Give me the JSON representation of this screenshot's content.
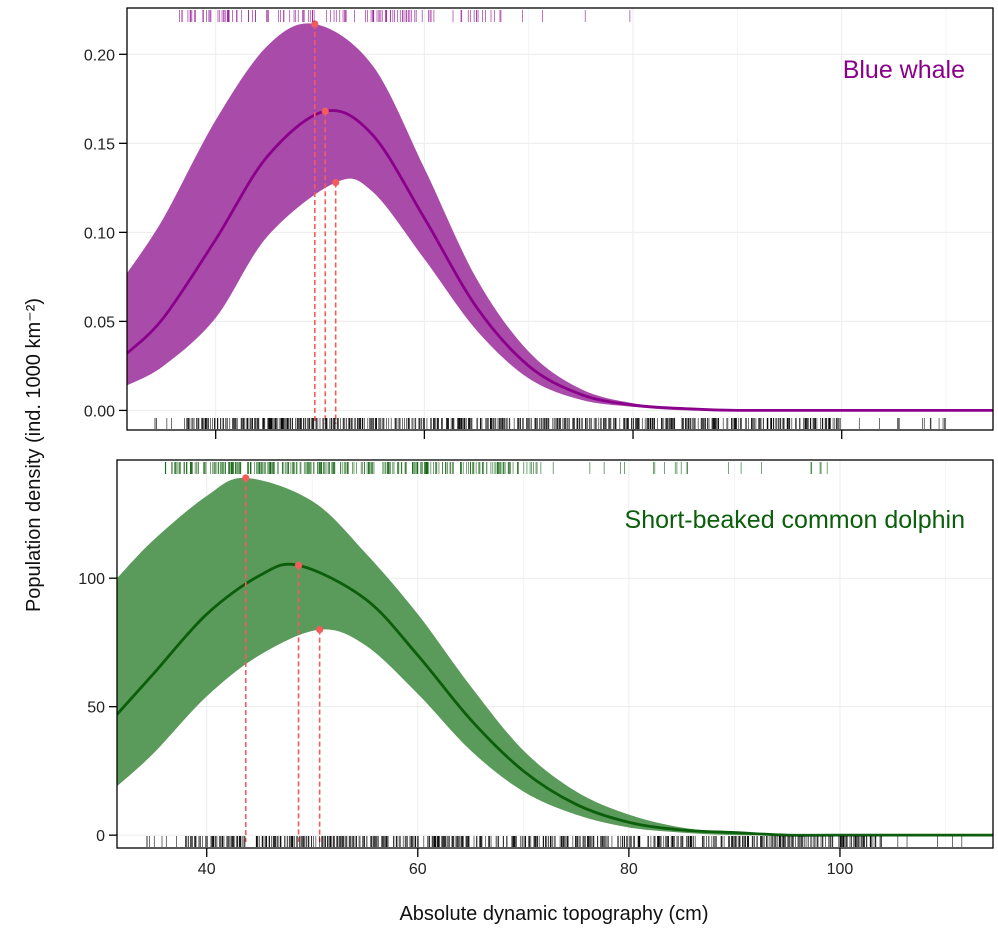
{
  "chart_data": [
    {
      "type": "line",
      "panel_label": "Blue whale",
      "color": "#8b008b",
      "band_color": "#a94ca9",
      "xlim": [
        31.5,
        114.5
      ],
      "ylim": [
        -0.011,
        0.226
      ],
      "x_ticks": [
        40,
        60,
        80,
        100
      ],
      "y_ticks": [
        0.0,
        0.05,
        0.1,
        0.15,
        0.2
      ],
      "y_tick_labels": [
        "0.00",
        "0.05",
        "0.10",
        "0.15",
        "0.20"
      ],
      "x_tick_labels": [
        "",
        "",
        "",
        ""
      ],
      "series": [
        {
          "role": "mean",
          "x": [
            31.5,
            35,
            40,
            45,
            50.5,
            55,
            60,
            65,
            70,
            75,
            80,
            85,
            90,
            100,
            114.5
          ],
          "y": [
            0.032,
            0.052,
            0.096,
            0.143,
            0.168,
            0.155,
            0.108,
            0.058,
            0.025,
            0.009,
            0.003,
            0.001,
            0.0,
            0.0,
            0.0
          ]
        },
        {
          "role": "upper",
          "x": [
            31.5,
            35,
            40,
            45,
            49.5,
            55,
            60,
            65,
            70,
            75,
            80,
            85,
            90,
            100,
            114.5
          ],
          "y": [
            0.077,
            0.108,
            0.163,
            0.205,
            0.217,
            0.194,
            0.136,
            0.074,
            0.033,
            0.012,
            0.004,
            0.001,
            0.0,
            0.0,
            0.0
          ]
        },
        {
          "role": "lower",
          "x": [
            31.5,
            35,
            40,
            45,
            51.5,
            55,
            60,
            65,
            70,
            75,
            80,
            85,
            90,
            100,
            114.5
          ],
          "y": [
            0.014,
            0.025,
            0.052,
            0.098,
            0.128,
            0.123,
            0.085,
            0.045,
            0.018,
            0.006,
            0.002,
            0.0,
            0.0,
            0.0,
            0.0
          ]
        }
      ],
      "peaks": [
        {
          "x": 49.5,
          "y": 0.217
        },
        {
          "x": 50.5,
          "y": 0.168
        },
        {
          "x": 51.5,
          "y": 0.128
        }
      ],
      "rug_top": {
        "from": 35.5,
        "to": 82.5,
        "dense_from": 36.5,
        "dense_to": 67.5
      },
      "rug_bottom": {
        "from": 34,
        "to": 110,
        "dense_from": 37,
        "dense_to": 100
      }
    },
    {
      "type": "line",
      "panel_label": "Short-beaked common dolphin",
      "color": "#0b5e0b",
      "band_color": "#5a9a5a",
      "xlim": [
        31.5,
        114.5
      ],
      "ylim": [
        -5,
        146
      ],
      "x_ticks": [
        40,
        60,
        80,
        100
      ],
      "y_ticks": [
        0,
        50,
        100
      ],
      "y_tick_labels": [
        "0",
        "50",
        "100"
      ],
      "x_tick_labels": [
        "40",
        "60",
        "80",
        "100"
      ],
      "series": [
        {
          "role": "mean",
          "x": [
            31.5,
            35,
            40,
            45,
            48.7,
            55,
            60,
            65,
            70,
            75,
            80,
            85,
            90,
            95,
            100,
            114.5
          ],
          "y": [
            47,
            63,
            86,
            101,
            105,
            92,
            70,
            45,
            25,
            12,
            5,
            2,
            1,
            0,
            0,
            0
          ]
        },
        {
          "role": "upper",
          "x": [
            31.5,
            35,
            40,
            43.7,
            50,
            55,
            60,
            65,
            70,
            75,
            80,
            85,
            90,
            95,
            100,
            114.5
          ],
          "y": [
            100,
            115,
            132,
            139,
            130,
            110,
            86,
            58,
            33,
            17,
            8,
            3,
            1,
            0,
            0,
            0
          ]
        },
        {
          "role": "lower",
          "x": [
            31.5,
            35,
            40,
            45,
            50.7,
            55,
            60,
            65,
            70,
            75,
            80,
            85,
            90,
            95,
            100,
            114.5
          ],
          "y": [
            19,
            32,
            54,
            70,
            80,
            74,
            55,
            33,
            17,
            8,
            3,
            1,
            0,
            0,
            0,
            0
          ]
        }
      ],
      "peaks": [
        {
          "x": 43.7,
          "y": 139
        },
        {
          "x": 48.7,
          "y": 105
        },
        {
          "x": 50.7,
          "y": 80
        }
      ],
      "rug_top": {
        "from": 35.5,
        "to": 100,
        "dense_from": 36,
        "dense_to": 71
      },
      "rug_bottom": {
        "from": 34,
        "to": 112,
        "dense_from": 38,
        "dense_to": 104
      }
    }
  ],
  "xlabel": "Absolute dynamic topography (cm)",
  "ylabel": "Population density (ind. 1000 km⁻²)",
  "peak_color": "#f25c5c"
}
